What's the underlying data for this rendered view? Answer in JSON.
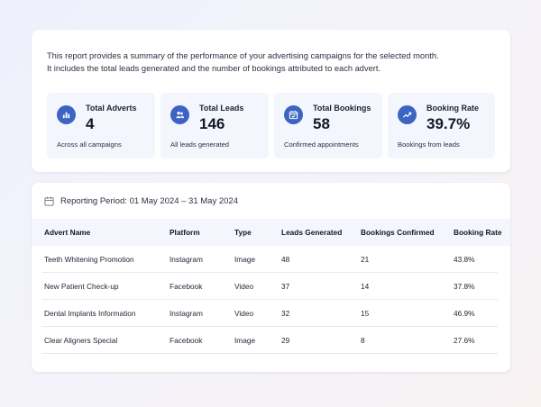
{
  "intro": {
    "line1": "This report provides a summary of the performance of your advertising campaigns for the selected month.",
    "line2": "It includes the total leads generated and the number of bookings attributed to each advert."
  },
  "stats": [
    {
      "icon": "bar-chart-icon",
      "label": "Total Adverts",
      "value": "4",
      "sub": "Across all campaigns"
    },
    {
      "icon": "users-icon",
      "label": "Total Leads",
      "value": "146",
      "sub": "All leads generated"
    },
    {
      "icon": "calendar-check-icon",
      "label": "Total Bookings",
      "value": "58",
      "sub": "Confirmed appointments"
    },
    {
      "icon": "trend-line-icon",
      "label": "Booking Rate",
      "value": "39.7%",
      "sub": "Bookings from leads"
    }
  ],
  "period": {
    "icon": "calendar-icon",
    "text": "Reporting Period: 01 May 2024 – 31 May 2024"
  },
  "table": {
    "columns": [
      "Advert Name",
      "Platform",
      "Type",
      "Leads Generated",
      "Bookings Confirmed",
      "Booking Rate"
    ],
    "rows": [
      [
        "Teeth Whitening Promotion",
        "Instagram",
        "Image",
        "48",
        "21",
        "43.8%"
      ],
      [
        "New Patient Check-up",
        "Facebook",
        "Video",
        "37",
        "14",
        "37.8%"
      ],
      [
        "Dental Implants Information",
        "Instagram",
        "Video",
        "32",
        "15",
        "46.9%"
      ],
      [
        "Clear Aligners Special",
        "Facebook",
        "Image",
        "29",
        "8",
        "27.6%"
      ]
    ]
  },
  "colors": {
    "accent": "#3d64c3",
    "tile": "#f3f6fd",
    "text": "#1d2433"
  }
}
